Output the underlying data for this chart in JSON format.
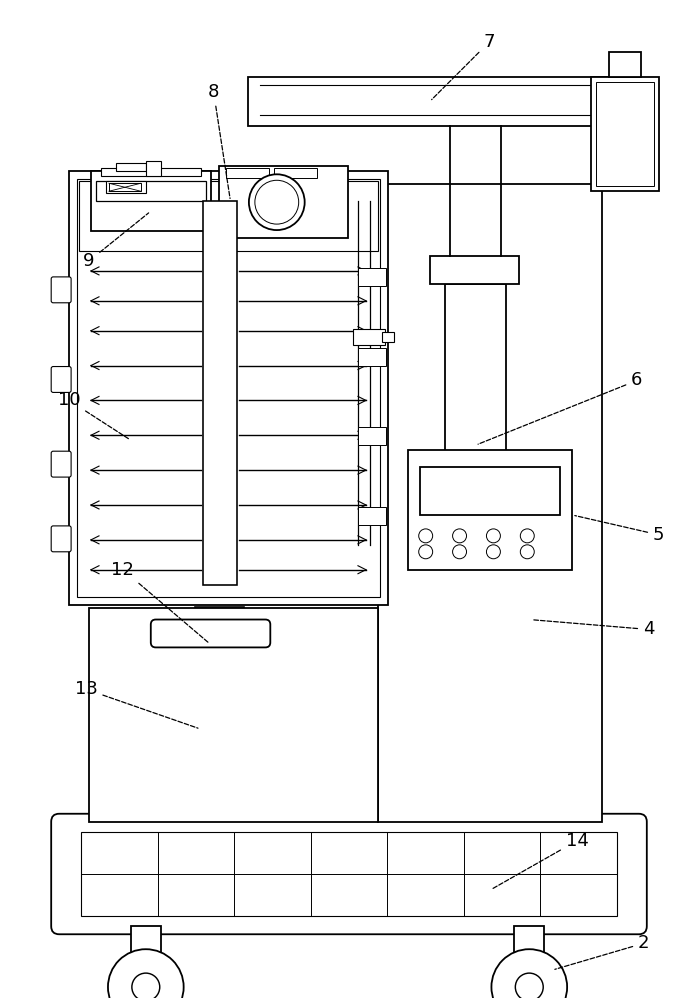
{
  "bg_color": "#ffffff",
  "line_color": "#000000",
  "lw": 1.3,
  "fig_width": 6.97,
  "fig_height": 10.0
}
